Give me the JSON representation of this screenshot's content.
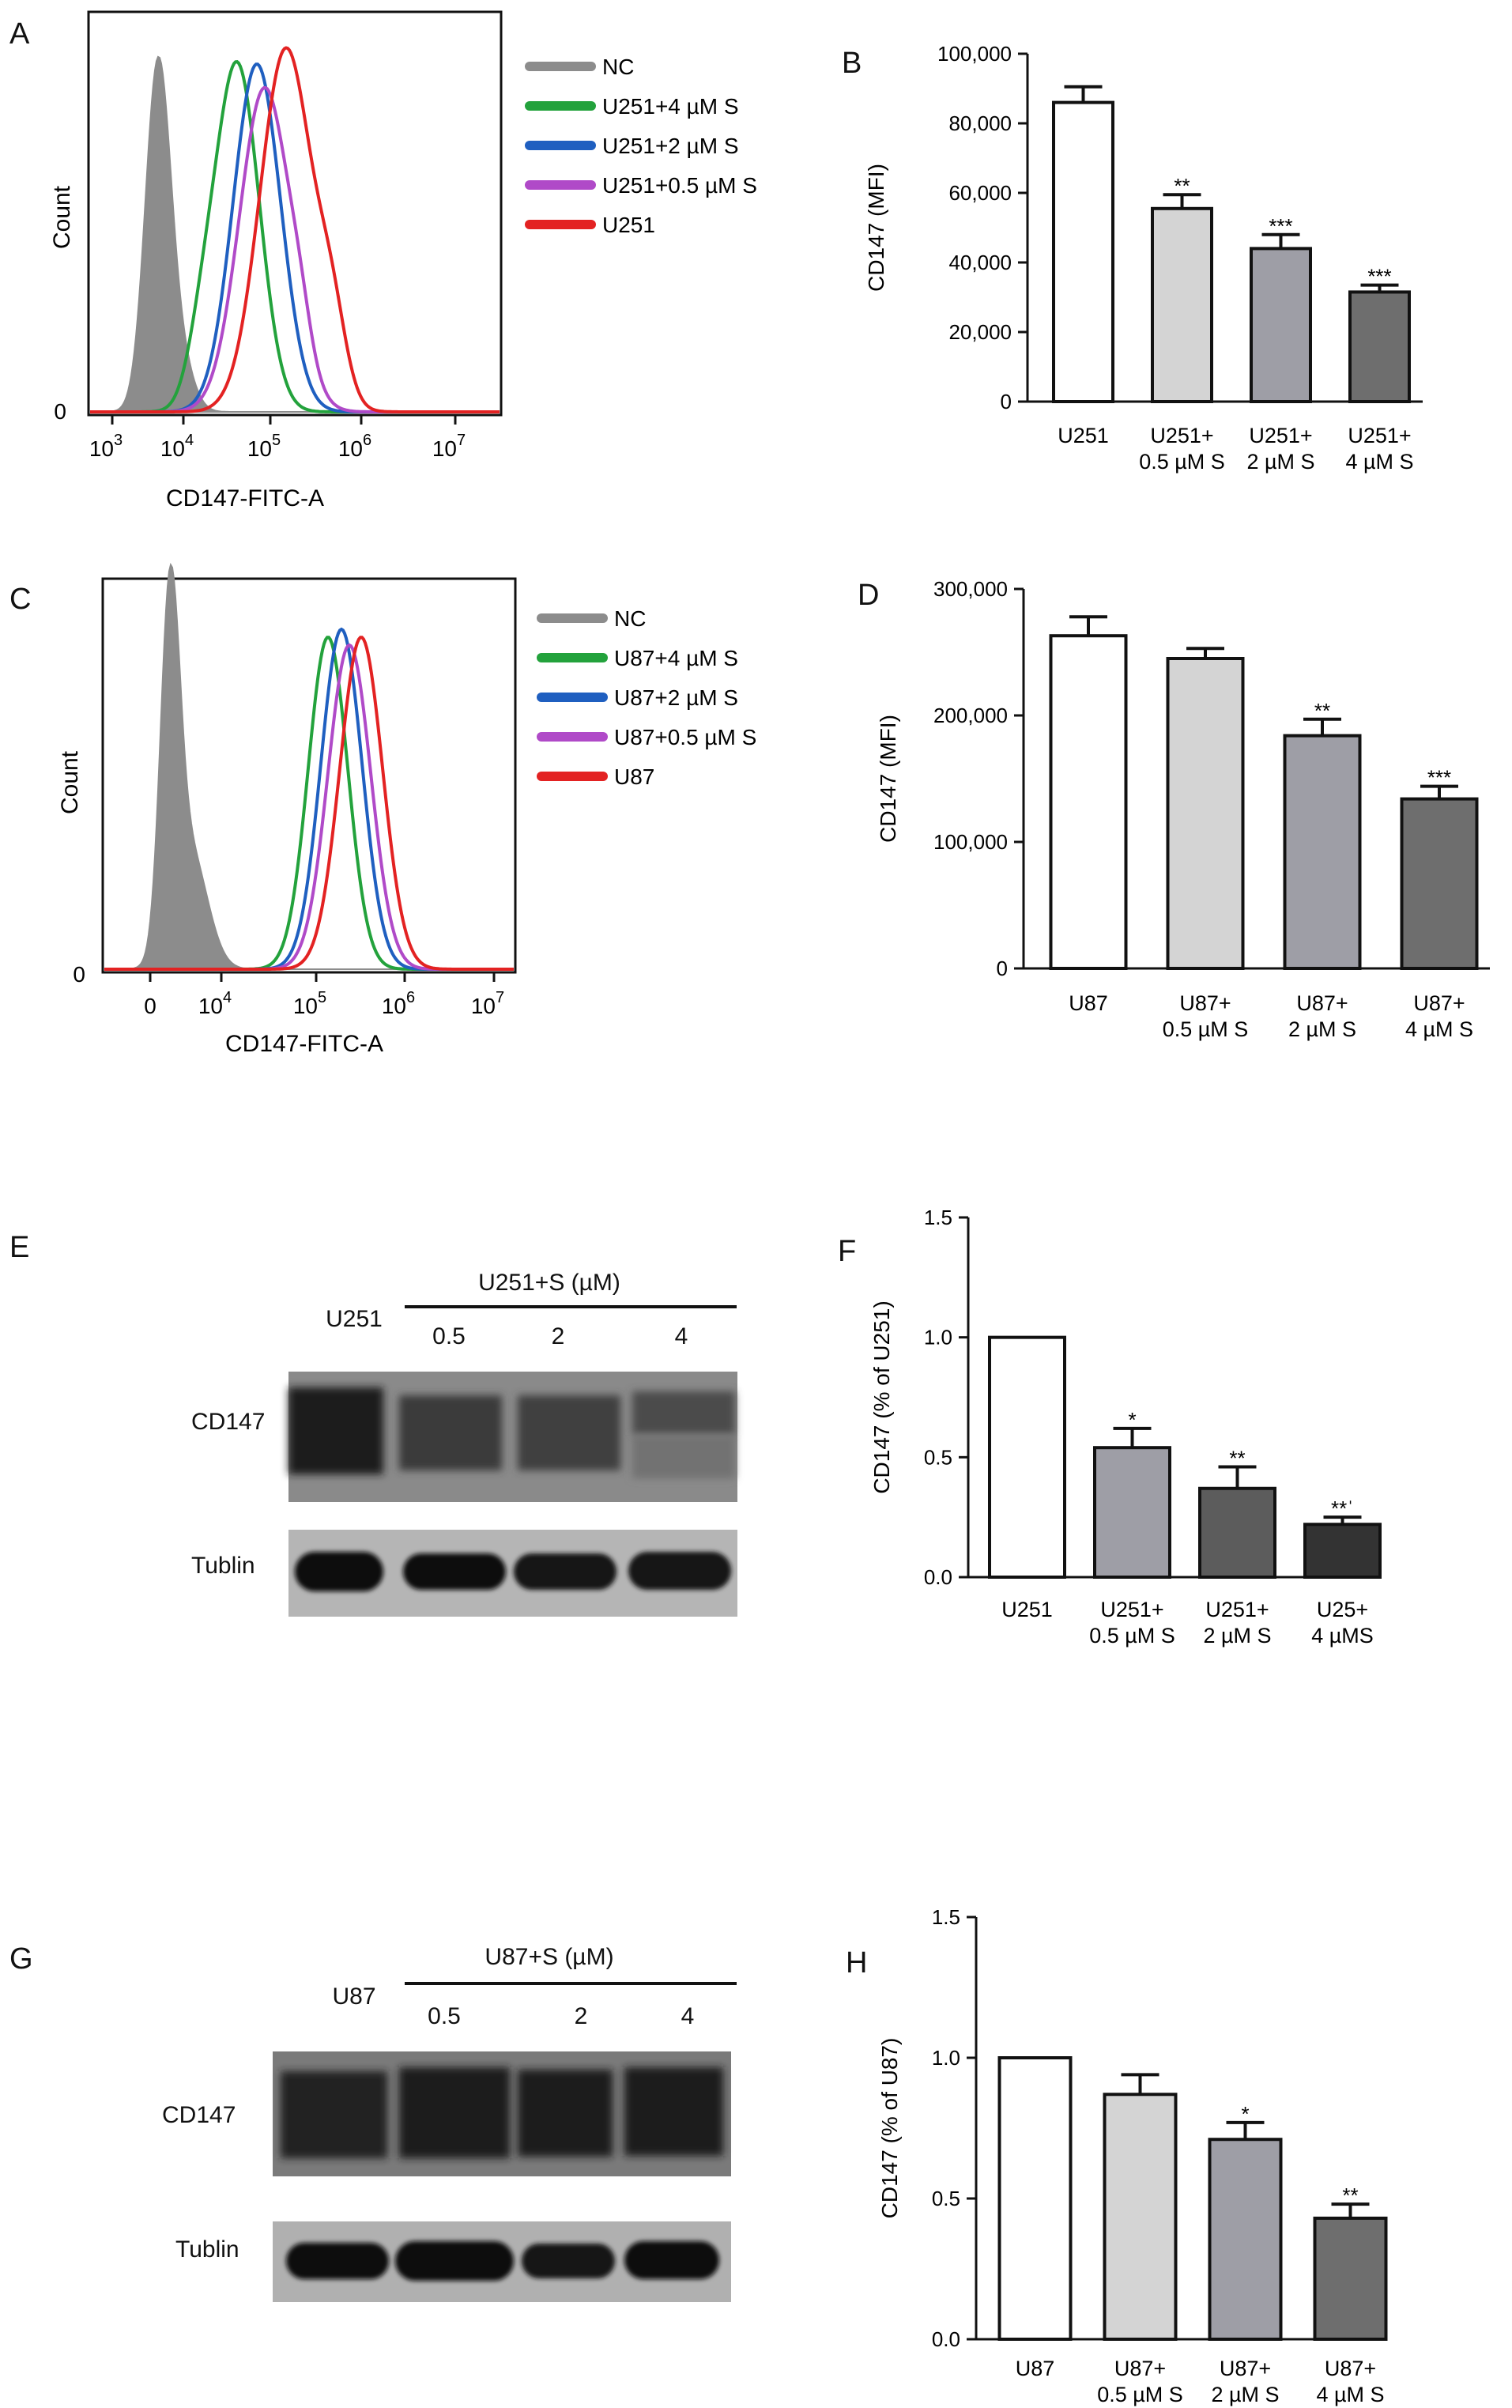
{
  "panels": {
    "A": "A",
    "B": "B",
    "C": "C",
    "D": "D",
    "E": "E",
    "F": "F",
    "G": "G",
    "H": "H"
  },
  "histA": {
    "ylabel": "Count",
    "y0": "0",
    "xlabel": "CD147-FITC-A",
    "xticks": [
      {
        "base": "10",
        "exp": "3"
      },
      {
        "base": "10",
        "exp": "4"
      },
      {
        "base": "10",
        "exp": "5"
      },
      {
        "base": "10",
        "exp": "6"
      },
      {
        "base": "10",
        "exp": "7"
      }
    ],
    "legend": [
      "NC",
      "U251+4 µM S",
      "U251+2 µM S",
      "U251+0.5 µM S",
      "U251"
    ],
    "colors": [
      "#8c8c8c",
      "#23a23c",
      "#1f5fc0",
      "#b04ac8",
      "#e32222"
    ]
  },
  "histC": {
    "ylabel": "Count",
    "y0": "0",
    "xlabel": "CD147-FITC-A",
    "xticks": [
      {
        "base": "0",
        "exp": ""
      },
      {
        "base": "10",
        "exp": "4"
      },
      {
        "base": "10",
        "exp": "5"
      },
      {
        "base": "10",
        "exp": "6"
      },
      {
        "base": "10",
        "exp": "7"
      }
    ],
    "legend": [
      "NC",
      "U87+4 µM S",
      "U87+2 µM S",
      "U87+0.5 µM S",
      "U87"
    ],
    "colors": [
      "#8c8c8c",
      "#23a23c",
      "#1f5fc0",
      "#b04ac8",
      "#e32222"
    ]
  },
  "chart_data": [
    {
      "panel": "B",
      "type": "bar",
      "ylabel": "CD147 (MFI)",
      "ylim": [
        0,
        100000
      ],
      "yticks": [
        "0",
        "20,000",
        "40,000",
        "60,000",
        "80,000",
        "100,000"
      ],
      "categories": [
        [
          "U251"
        ],
        [
          "U251+",
          "0.5 µM S"
        ],
        [
          "U251+",
          "2 µM S"
        ],
        [
          "U251+",
          "4 µM S"
        ]
      ],
      "values": [
        86000,
        55500,
        44000,
        31500
      ],
      "errors": [
        4500,
        4000,
        4000,
        2000
      ],
      "significance": [
        "",
        "**",
        "***",
        "***"
      ],
      "colors": [
        "#ffffff",
        "#d4d4d4",
        "#9e9ea6",
        "#6e6e6e"
      ]
    },
    {
      "panel": "D",
      "type": "bar",
      "ylabel": "CD147 (MFI)",
      "ylim": [
        0,
        300000
      ],
      "yticks": [
        "0",
        "100,000",
        "200,000",
        "300,000"
      ],
      "categories": [
        [
          "U87"
        ],
        [
          "U87+",
          "0.5 µM S"
        ],
        [
          "U87+",
          "2 µM S"
        ],
        [
          "U87+",
          "4 µM S"
        ]
      ],
      "values": [
        263000,
        245000,
        184000,
        134000
      ],
      "errors": [
        15000,
        8000,
        13000,
        10000
      ],
      "significance": [
        "",
        "",
        "**",
        "***"
      ],
      "colors": [
        "#ffffff",
        "#d4d4d4",
        "#9e9ea6",
        "#6e6e6e"
      ]
    },
    {
      "panel": "F",
      "type": "bar",
      "ylabel": "CD147 (% of U251)",
      "ylim": [
        0,
        1.5
      ],
      "yticks": [
        "0.0",
        "0.5",
        "1.0",
        "1.5"
      ],
      "categories": [
        [
          "U251"
        ],
        [
          "U251+",
          "0.5 µM S"
        ],
        [
          "U251+",
          "2 µM S"
        ],
        [
          "U25+",
          "4 µMS"
        ]
      ],
      "values": [
        1.0,
        0.54,
        0.37,
        0.22
      ],
      "errors": [
        0,
        0.08,
        0.09,
        0.03
      ],
      "significance": [
        "",
        "*",
        "**",
        "**ˈ"
      ],
      "colors": [
        "#ffffff",
        "#9e9ea6",
        "#5c5c5c",
        "#333333"
      ]
    },
    {
      "panel": "H",
      "type": "bar",
      "ylabel": "CD147 (% of U87)",
      "ylim": [
        0,
        1.5
      ],
      "yticks": [
        "0.0",
        "0.5",
        "1.0",
        "1.5"
      ],
      "categories": [
        [
          "U87"
        ],
        [
          "U87+",
          "0.5 µM S"
        ],
        [
          "U87+",
          "2 µM S"
        ],
        [
          "U87+",
          "4 µM S"
        ]
      ],
      "values": [
        1.0,
        0.87,
        0.71,
        0.43
      ],
      "errors": [
        0,
        0.07,
        0.06,
        0.05
      ],
      "significance": [
        "",
        "",
        "*",
        "**"
      ],
      "colors": [
        "#ffffff",
        "#d4d4d4",
        "#9e9ea6",
        "#6e6e6e"
      ]
    }
  ],
  "blotE": {
    "control": "U251",
    "treatment": "U251+S (µM)",
    "doses": [
      "0.5",
      "2",
      "4"
    ],
    "rows": [
      "CD147",
      "Tublin"
    ]
  },
  "blotG": {
    "control": "U87",
    "treatment": "U87+S (µM)",
    "doses": [
      "0.5",
      "2",
      "4"
    ],
    "rows": [
      "CD147",
      "Tublin"
    ]
  }
}
